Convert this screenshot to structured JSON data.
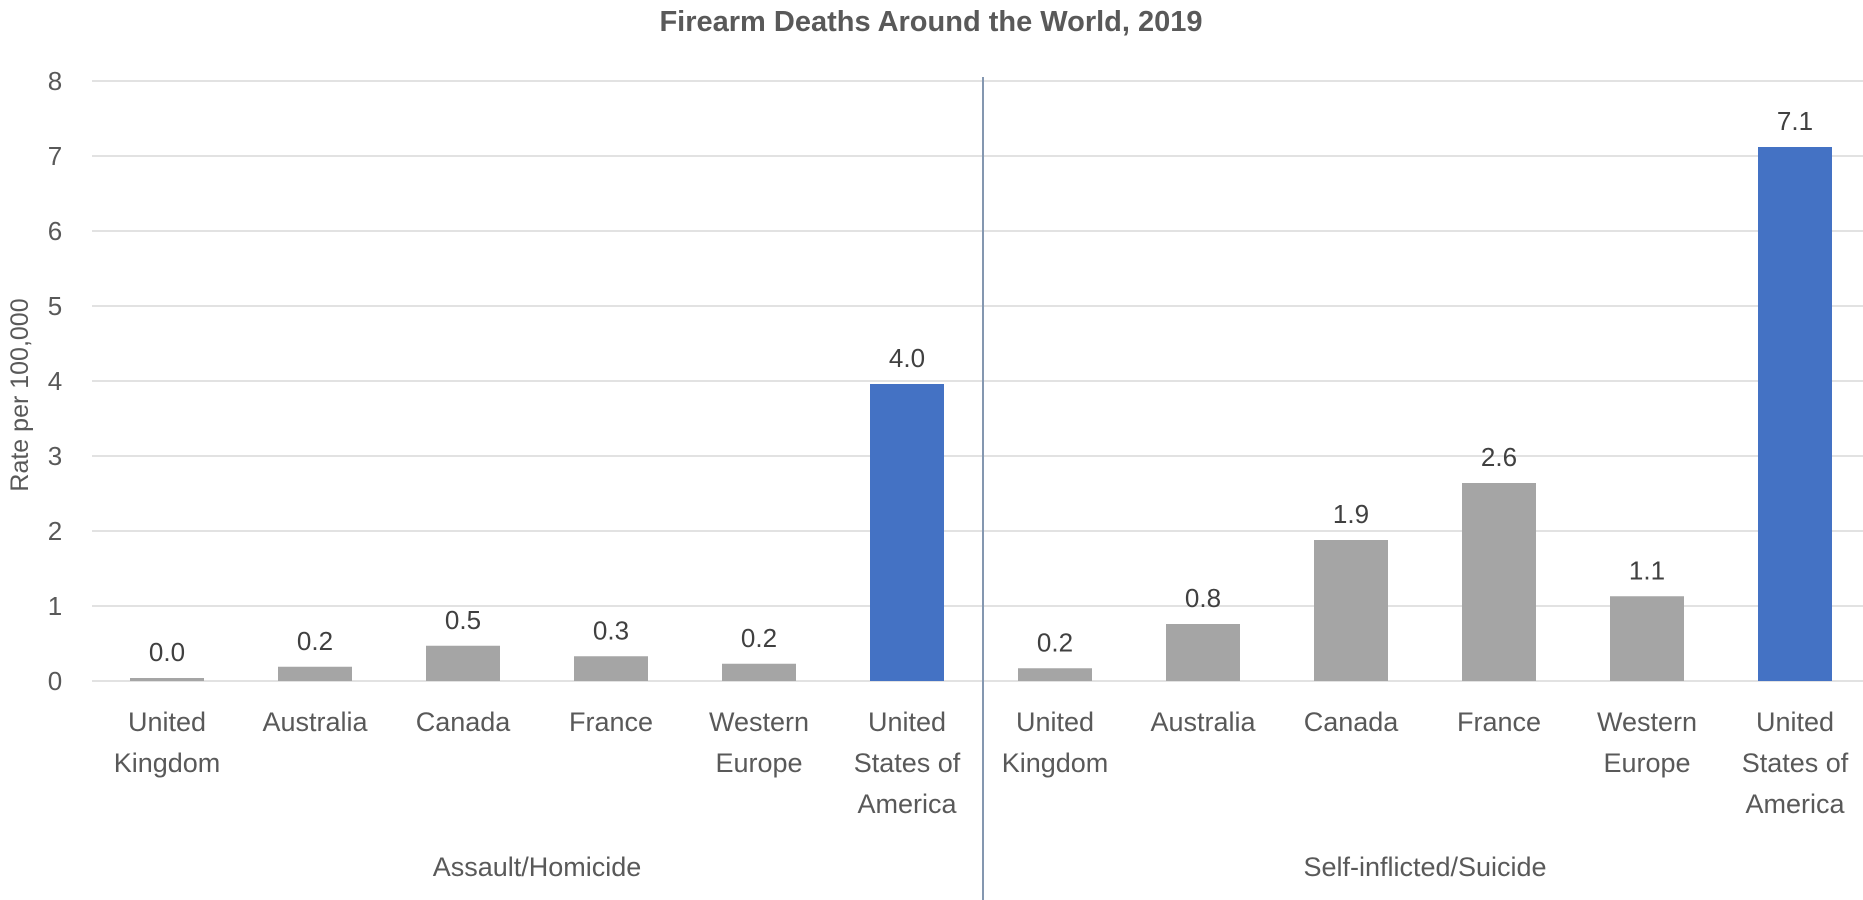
{
  "chart_data": {
    "type": "bar",
    "title": "Firearm Deaths Around the World, 2019",
    "xlabel": "",
    "ylabel": "Rate per 100,000",
    "ylim": [
      0,
      8
    ],
    "yticks": [
      "0",
      "1",
      "2",
      "3",
      "4",
      "5",
      "6",
      "7",
      "8"
    ],
    "grid": true,
    "legend": "none",
    "colors": {
      "default": "#a5a5a5",
      "highlight": "#4472c4"
    },
    "groups": [
      {
        "name": "Assault/Homicide",
        "categories": [
          [
            "United",
            "Kingdom"
          ],
          [
            "Australia"
          ],
          [
            "Canada"
          ],
          [
            "France"
          ],
          [
            "Western",
            "Europe"
          ],
          [
            "United",
            "States of",
            "America"
          ]
        ],
        "values": [
          0.04,
          0.19,
          0.47,
          0.33,
          0.23,
          3.96
        ],
        "labels": [
          "0.0",
          "0.2",
          "0.5",
          "0.3",
          "0.2",
          "4.0"
        ],
        "highlight": [
          false,
          false,
          false,
          false,
          false,
          true
        ]
      },
      {
        "name": "Self-inflicted/Suicide",
        "categories": [
          [
            "United",
            "Kingdom"
          ],
          [
            "Australia"
          ],
          [
            "Canada"
          ],
          [
            "France"
          ],
          [
            "Western",
            "Europe"
          ],
          [
            "United",
            "States of",
            "America"
          ]
        ],
        "values": [
          0.17,
          0.76,
          1.88,
          2.64,
          1.13,
          7.12
        ],
        "labels": [
          "0.2",
          "0.8",
          "1.9",
          "2.6",
          "1.1",
          "7.1"
        ],
        "highlight": [
          false,
          false,
          false,
          false,
          false,
          true
        ]
      }
    ]
  }
}
